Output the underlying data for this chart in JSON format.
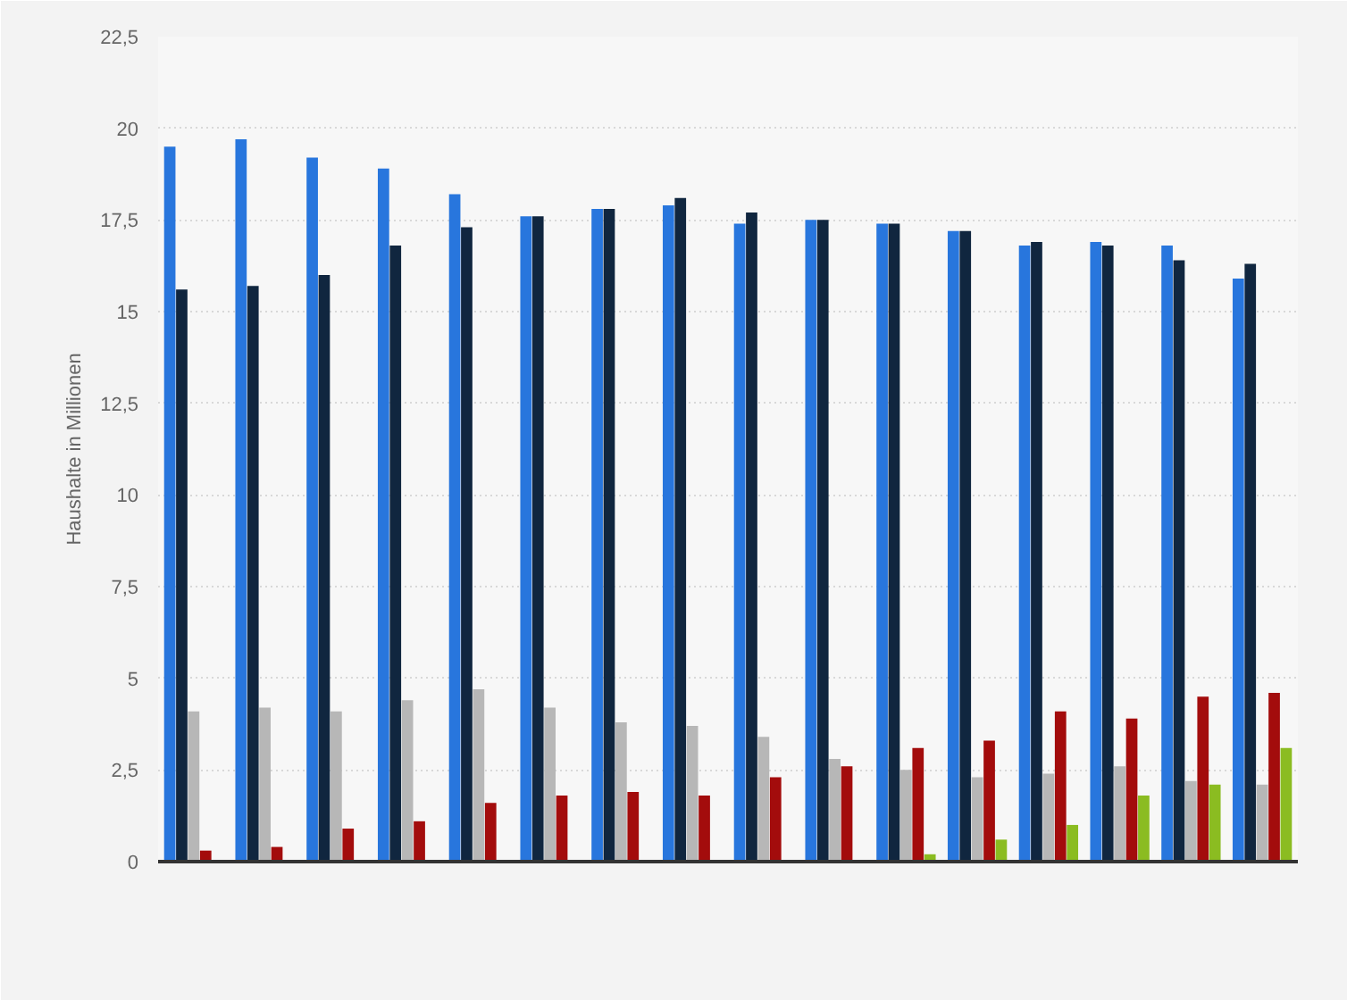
{
  "chart_data": {
    "type": "bar",
    "ylabel": "Haushalte in Millionen",
    "categories": [
      null,
      null,
      null,
      null,
      null,
      null,
      null,
      null,
      null,
      null,
      null,
      null,
      null,
      null,
      null,
      null
    ],
    "series": [
      {
        "color": "#2876dd",
        "values": [
          19.5,
          19.7,
          19.2,
          18.9,
          18.2,
          17.6,
          17.8,
          17.9,
          17.4,
          17.5,
          17.4,
          17.2,
          16.8,
          16.9,
          16.8,
          15.9
        ]
      },
      {
        "color": "#10263f",
        "values": [
          15.6,
          15.7,
          16.0,
          16.8,
          17.3,
          17.6,
          17.8,
          18.1,
          17.7,
          17.5,
          17.4,
          17.2,
          16.9,
          16.8,
          16.4,
          16.3
        ]
      },
      {
        "color": "#b7b7b7",
        "values": [
          4.1,
          4.2,
          4.1,
          4.4,
          4.7,
          4.2,
          3.8,
          3.7,
          3.4,
          2.8,
          2.5,
          2.3,
          2.4,
          2.6,
          2.2,
          2.1
        ]
      },
      {
        "color": "#a30c0c",
        "values": [
          0.3,
          0.4,
          0.9,
          1.1,
          1.6,
          1.8,
          1.9,
          1.8,
          2.3,
          2.6,
          3.1,
          3.3,
          4.1,
          3.9,
          4.5,
          4.6
        ]
      },
      {
        "color": "#8bbc21",
        "values": [
          null,
          null,
          null,
          null,
          null,
          null,
          null,
          null,
          null,
          null,
          0.2,
          0.6,
          1.0,
          1.8,
          2.1,
          3.1
        ]
      }
    ],
    "ylim": [
      0,
      22.5
    ],
    "yticks": [
      0,
      {
        "value": 2.5,
        "label": "2,5"
      },
      5,
      {
        "value": 7.5,
        "label": "7,5"
      },
      10,
      {
        "value": 12.5,
        "label": "12,5"
      },
      15,
      {
        "value": 17.5,
        "label": "17,5"
      },
      20,
      {
        "value": 22.5,
        "label": "22,5"
      }
    ],
    "grid": "y"
  }
}
